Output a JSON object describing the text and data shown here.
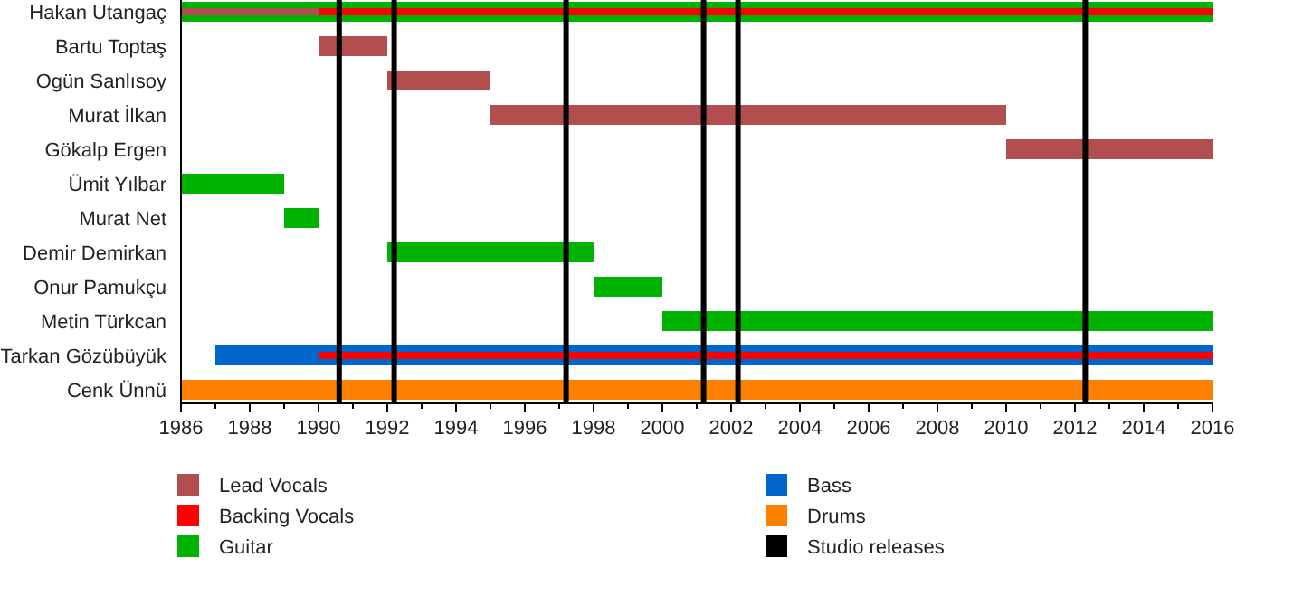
{
  "chart_data": {
    "type": "bar",
    "orientation": "horizontal",
    "categories": [
      "Hakan Utangaç",
      "Bartu Toptaş",
      "Ogün Sanlısoy",
      "Murat İlkan",
      "Gökalp Ergen",
      "Ümit Yılbar",
      "Murat Net",
      "Demir Demirkan",
      "Onur Pamukçu",
      "Metin Türkcan",
      "Tarkan Gözübüyük",
      "Cenk Ünnü"
    ],
    "series": [
      {
        "name": "Lead Vocals",
        "color": "#b34e4e",
        "base": [
          1986,
          1990,
          1992,
          1995,
          2010,
          null,
          null,
          null,
          null,
          null,
          null,
          null
        ],
        "values": [
          4,
          2,
          3,
          15,
          6,
          null,
          null,
          null,
          null,
          null,
          null,
          null
        ]
      },
      {
        "name": "Backing Vocals",
        "color": "#ff0000",
        "base": [
          1990,
          null,
          null,
          null,
          null,
          null,
          null,
          null,
          null,
          null,
          1990,
          null
        ],
        "values": [
          26,
          null,
          null,
          null,
          null,
          null,
          null,
          null,
          null,
          null,
          26,
          null
        ]
      },
      {
        "name": "Guitar",
        "color": "#00b300",
        "base": [
          1986,
          null,
          null,
          null,
          null,
          1986,
          1989,
          1992,
          1998,
          2000,
          null,
          null
        ],
        "values": [
          30,
          null,
          null,
          null,
          null,
          3,
          1,
          6,
          2,
          16,
          null,
          null
        ]
      },
      {
        "name": "Bass",
        "color": "#0066cc",
        "base": [
          null,
          null,
          null,
          null,
          null,
          null,
          null,
          null,
          null,
          null,
          1987,
          null
        ],
        "values": [
          null,
          null,
          null,
          null,
          null,
          null,
          null,
          null,
          null,
          null,
          29,
          null
        ]
      },
      {
        "name": "Drums",
        "color": "#ff8000",
        "base": [
          null,
          null,
          null,
          null,
          null,
          null,
          null,
          null,
          null,
          null,
          null,
          1986
        ],
        "values": [
          null,
          null,
          null,
          null,
          null,
          null,
          null,
          null,
          null,
          null,
          null,
          30
        ]
      }
    ],
    "ref_lines": [
      {
        "axis": "x",
        "value": 1990.6,
        "label": "Studio releases",
        "color": "#000000"
      },
      {
        "axis": "x",
        "value": 1992.2,
        "color": "#000000"
      },
      {
        "axis": "x",
        "value": 1997.2,
        "color": "#000000"
      },
      {
        "axis": "x",
        "value": 2001.2,
        "color": "#000000"
      },
      {
        "axis": "x",
        "value": 2002.2,
        "color": "#000000"
      },
      {
        "axis": "x",
        "value": 2012.3,
        "color": "#000000"
      }
    ],
    "xlim": [
      1986,
      2016
    ],
    "xticks": [
      1986,
      {
        "value": 1987,
        "label": null
      },
      1988,
      {
        "value": 1989,
        "label": null
      },
      1990,
      {
        "value": 1991,
        "label": null
      },
      1992,
      {
        "value": 1993,
        "label": null
      },
      1994,
      {
        "value": 1995,
        "label": null
      },
      1996,
      {
        "value": 1997,
        "label": null
      },
      1998,
      {
        "value": 1999,
        "label": null
      },
      2000,
      {
        "value": 2001,
        "label": null
      },
      2002,
      {
        "value": 2003,
        "label": null
      },
      2004,
      {
        "value": 2005,
        "label": null
      },
      2006,
      {
        "value": 2007,
        "label": null
      },
      2008,
      {
        "value": 2009,
        "label": null
      },
      2010,
      {
        "value": 2011,
        "label": null
      },
      2012,
      {
        "value": 2013,
        "label": null
      },
      2014,
      {
        "value": 2015,
        "label": null
      },
      2016
    ],
    "legend": "bottom"
  }
}
